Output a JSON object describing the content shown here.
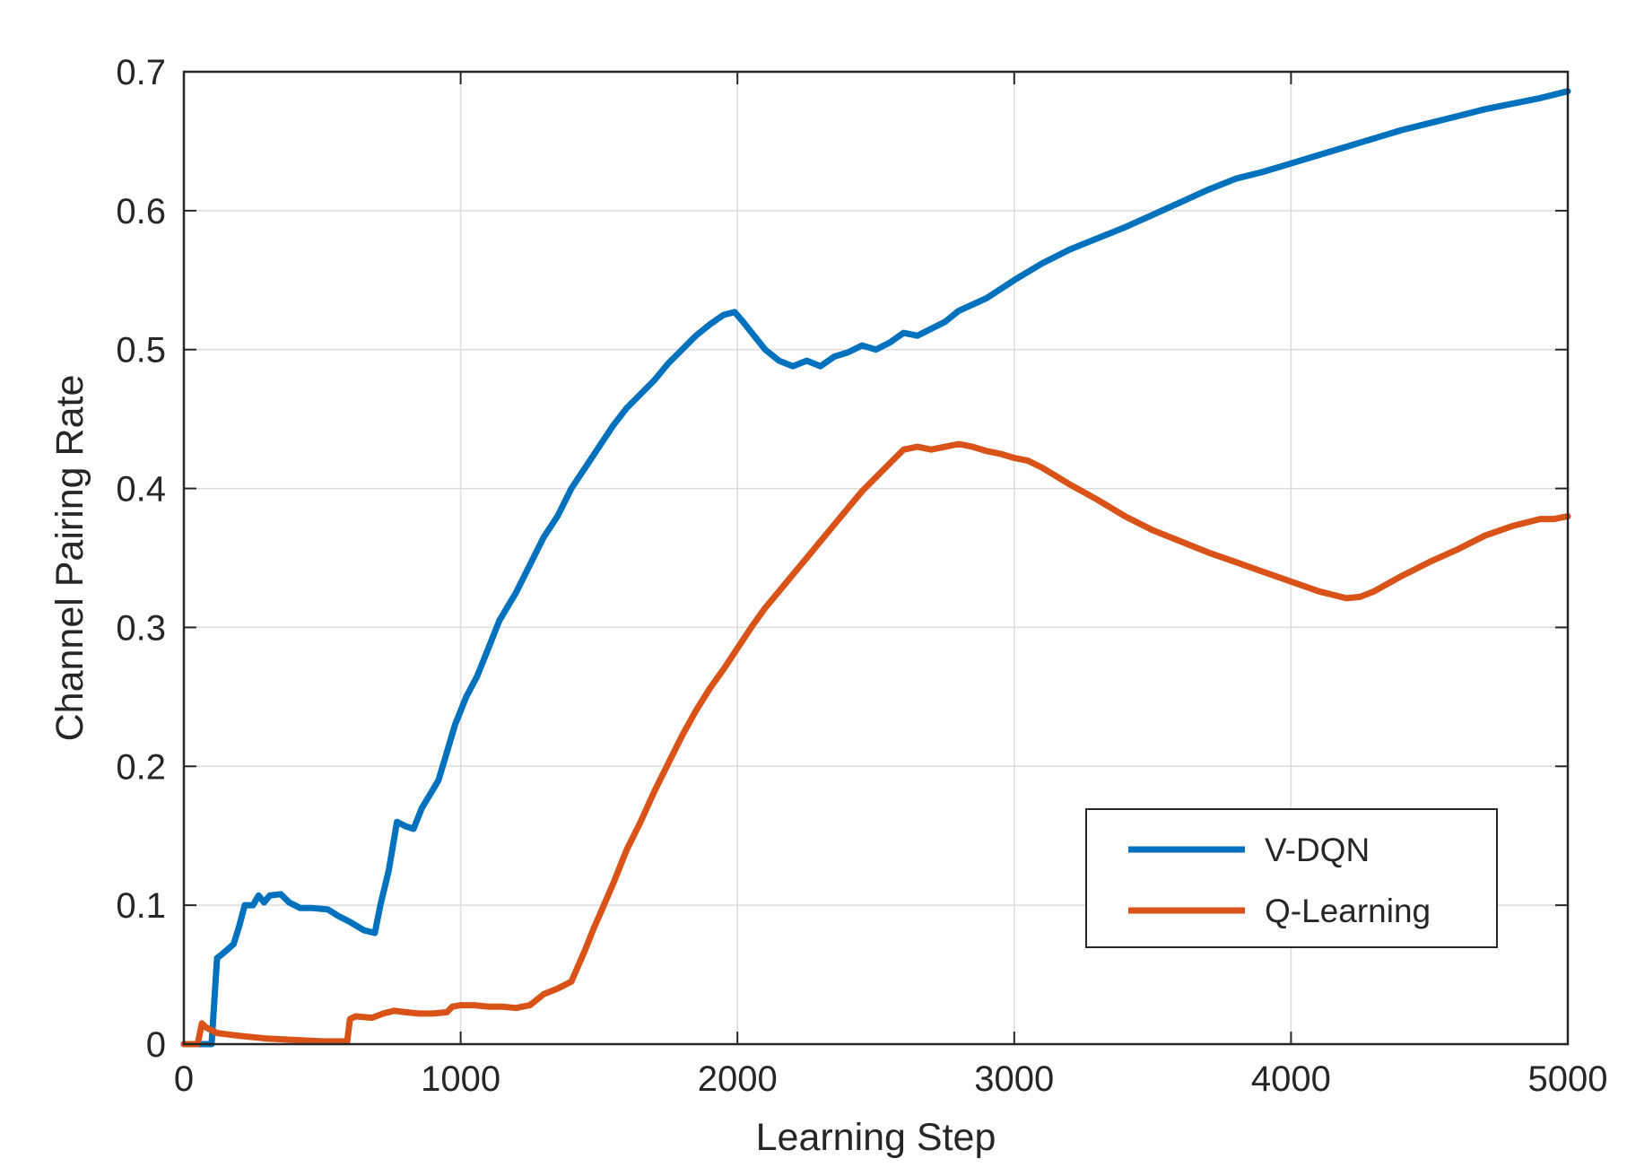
{
  "chart_data": {
    "type": "line",
    "title": "",
    "xlabel": "Learning Step",
    "ylabel": "Channel Pairing Rate",
    "xlim": [
      0,
      5000
    ],
    "ylim": [
      0,
      0.7
    ],
    "xticks": [
      0,
      1000,
      2000,
      3000,
      4000,
      5000
    ],
    "xtick_labels": [
      "0",
      "1000",
      "2000",
      "3000",
      "4000",
      "5000"
    ],
    "yticks": [
      0,
      0.1,
      0.2,
      0.3,
      0.4,
      0.5,
      0.6,
      0.7
    ],
    "ytick_labels": [
      "0",
      "0.1",
      "0.2",
      "0.3",
      "0.4",
      "0.5",
      "0.6",
      "0.7"
    ],
    "grid": true,
    "legend_position": "lower-right",
    "series": [
      {
        "name": "V-DQN",
        "color": "#0072BD",
        "points": [
          [
            0,
            0
          ],
          [
            90,
            0
          ],
          [
            100,
            0
          ],
          [
            120,
            0.062
          ],
          [
            140,
            0.065
          ],
          [
            180,
            0.072
          ],
          [
            200,
            0.085
          ],
          [
            220,
            0.1
          ],
          [
            250,
            0.1
          ],
          [
            270,
            0.107
          ],
          [
            290,
            0.102
          ],
          [
            310,
            0.107
          ],
          [
            350,
            0.108
          ],
          [
            380,
            0.102
          ],
          [
            420,
            0.098
          ],
          [
            460,
            0.098
          ],
          [
            520,
            0.097
          ],
          [
            560,
            0.092
          ],
          [
            600,
            0.088
          ],
          [
            650,
            0.082
          ],
          [
            690,
            0.08
          ],
          [
            710,
            0.1
          ],
          [
            740,
            0.125
          ],
          [
            770,
            0.16
          ],
          [
            800,
            0.157
          ],
          [
            830,
            0.155
          ],
          [
            860,
            0.17
          ],
          [
            890,
            0.18
          ],
          [
            920,
            0.19
          ],
          [
            950,
            0.21
          ],
          [
            980,
            0.23
          ],
          [
            1020,
            0.25
          ],
          [
            1060,
            0.265
          ],
          [
            1100,
            0.285
          ],
          [
            1140,
            0.305
          ],
          [
            1200,
            0.325
          ],
          [
            1250,
            0.345
          ],
          [
            1300,
            0.365
          ],
          [
            1350,
            0.38
          ],
          [
            1400,
            0.4
          ],
          [
            1450,
            0.415
          ],
          [
            1500,
            0.43
          ],
          [
            1550,
            0.445
          ],
          [
            1600,
            0.458
          ],
          [
            1650,
            0.468
          ],
          [
            1700,
            0.478
          ],
          [
            1750,
            0.49
          ],
          [
            1800,
            0.5
          ],
          [
            1850,
            0.51
          ],
          [
            1900,
            0.518
          ],
          [
            1950,
            0.525
          ],
          [
            1990,
            0.527
          ],
          [
            2020,
            0.52
          ],
          [
            2060,
            0.51
          ],
          [
            2100,
            0.5
          ],
          [
            2150,
            0.492
          ],
          [
            2200,
            0.488
          ],
          [
            2250,
            0.492
          ],
          [
            2300,
            0.488
          ],
          [
            2350,
            0.495
          ],
          [
            2400,
            0.498
          ],
          [
            2450,
            0.503
          ],
          [
            2500,
            0.5
          ],
          [
            2550,
            0.505
          ],
          [
            2600,
            0.512
          ],
          [
            2650,
            0.51
          ],
          [
            2700,
            0.515
          ],
          [
            2750,
            0.52
          ],
          [
            2800,
            0.528
          ],
          [
            2900,
            0.537
          ],
          [
            3000,
            0.55
          ],
          [
            3100,
            0.562
          ],
          [
            3200,
            0.572
          ],
          [
            3300,
            0.58
          ],
          [
            3400,
            0.588
          ],
          [
            3500,
            0.597
          ],
          [
            3600,
            0.606
          ],
          [
            3700,
            0.615
          ],
          [
            3800,
            0.623
          ],
          [
            3900,
            0.628
          ],
          [
            4000,
            0.634
          ],
          [
            4100,
            0.64
          ],
          [
            4200,
            0.646
          ],
          [
            4300,
            0.652
          ],
          [
            4400,
            0.658
          ],
          [
            4500,
            0.663
          ],
          [
            4600,
            0.668
          ],
          [
            4700,
            0.673
          ],
          [
            4800,
            0.677
          ],
          [
            4900,
            0.681
          ],
          [
            5000,
            0.686
          ]
        ]
      },
      {
        "name": "Q-Learning",
        "color": "#D95319",
        "points": [
          [
            0,
            0
          ],
          [
            50,
            0
          ],
          [
            65,
            0.015
          ],
          [
            80,
            0.012
          ],
          [
            120,
            0.008
          ],
          [
            200,
            0.006
          ],
          [
            300,
            0.004
          ],
          [
            400,
            0.003
          ],
          [
            500,
            0.002
          ],
          [
            590,
            0.002
          ],
          [
            600,
            0.018
          ],
          [
            620,
            0.02
          ],
          [
            680,
            0.019
          ],
          [
            720,
            0.022
          ],
          [
            760,
            0.024
          ],
          [
            800,
            0.023
          ],
          [
            850,
            0.022
          ],
          [
            900,
            0.022
          ],
          [
            950,
            0.023
          ],
          [
            970,
            0.027
          ],
          [
            1000,
            0.028
          ],
          [
            1050,
            0.028
          ],
          [
            1100,
            0.027
          ],
          [
            1150,
            0.027
          ],
          [
            1200,
            0.026
          ],
          [
            1250,
            0.028
          ],
          [
            1300,
            0.036
          ],
          [
            1350,
            0.04
          ],
          [
            1400,
            0.045
          ],
          [
            1450,
            0.068
          ],
          [
            1480,
            0.083
          ],
          [
            1500,
            0.092
          ],
          [
            1550,
            0.115
          ],
          [
            1600,
            0.14
          ],
          [
            1650,
            0.16
          ],
          [
            1700,
            0.182
          ],
          [
            1750,
            0.202
          ],
          [
            1800,
            0.222
          ],
          [
            1850,
            0.24
          ],
          [
            1900,
            0.256
          ],
          [
            1950,
            0.27
          ],
          [
            2000,
            0.285
          ],
          [
            2050,
            0.3
          ],
          [
            2100,
            0.314
          ],
          [
            2150,
            0.326
          ],
          [
            2200,
            0.338
          ],
          [
            2250,
            0.35
          ],
          [
            2300,
            0.362
          ],
          [
            2350,
            0.374
          ],
          [
            2400,
            0.386
          ],
          [
            2450,
            0.398
          ],
          [
            2500,
            0.408
          ],
          [
            2550,
            0.418
          ],
          [
            2600,
            0.428
          ],
          [
            2650,
            0.43
          ],
          [
            2700,
            0.428
          ],
          [
            2750,
            0.43
          ],
          [
            2800,
            0.432
          ],
          [
            2850,
            0.43
          ],
          [
            2900,
            0.427
          ],
          [
            2950,
            0.425
          ],
          [
            3000,
            0.422
          ],
          [
            3050,
            0.42
          ],
          [
            3100,
            0.415
          ],
          [
            3200,
            0.403
          ],
          [
            3300,
            0.392
          ],
          [
            3400,
            0.38
          ],
          [
            3500,
            0.37
          ],
          [
            3600,
            0.362
          ],
          [
            3700,
            0.354
          ],
          [
            3800,
            0.347
          ],
          [
            3900,
            0.34
          ],
          [
            4000,
            0.333
          ],
          [
            4100,
            0.326
          ],
          [
            4200,
            0.321
          ],
          [
            4250,
            0.322
          ],
          [
            4300,
            0.326
          ],
          [
            4400,
            0.337
          ],
          [
            4500,
            0.347
          ],
          [
            4600,
            0.356
          ],
          [
            4700,
            0.366
          ],
          [
            4800,
            0.373
          ],
          [
            4900,
            0.378
          ],
          [
            4950,
            0.378
          ],
          [
            5000,
            0.38
          ]
        ]
      }
    ]
  }
}
